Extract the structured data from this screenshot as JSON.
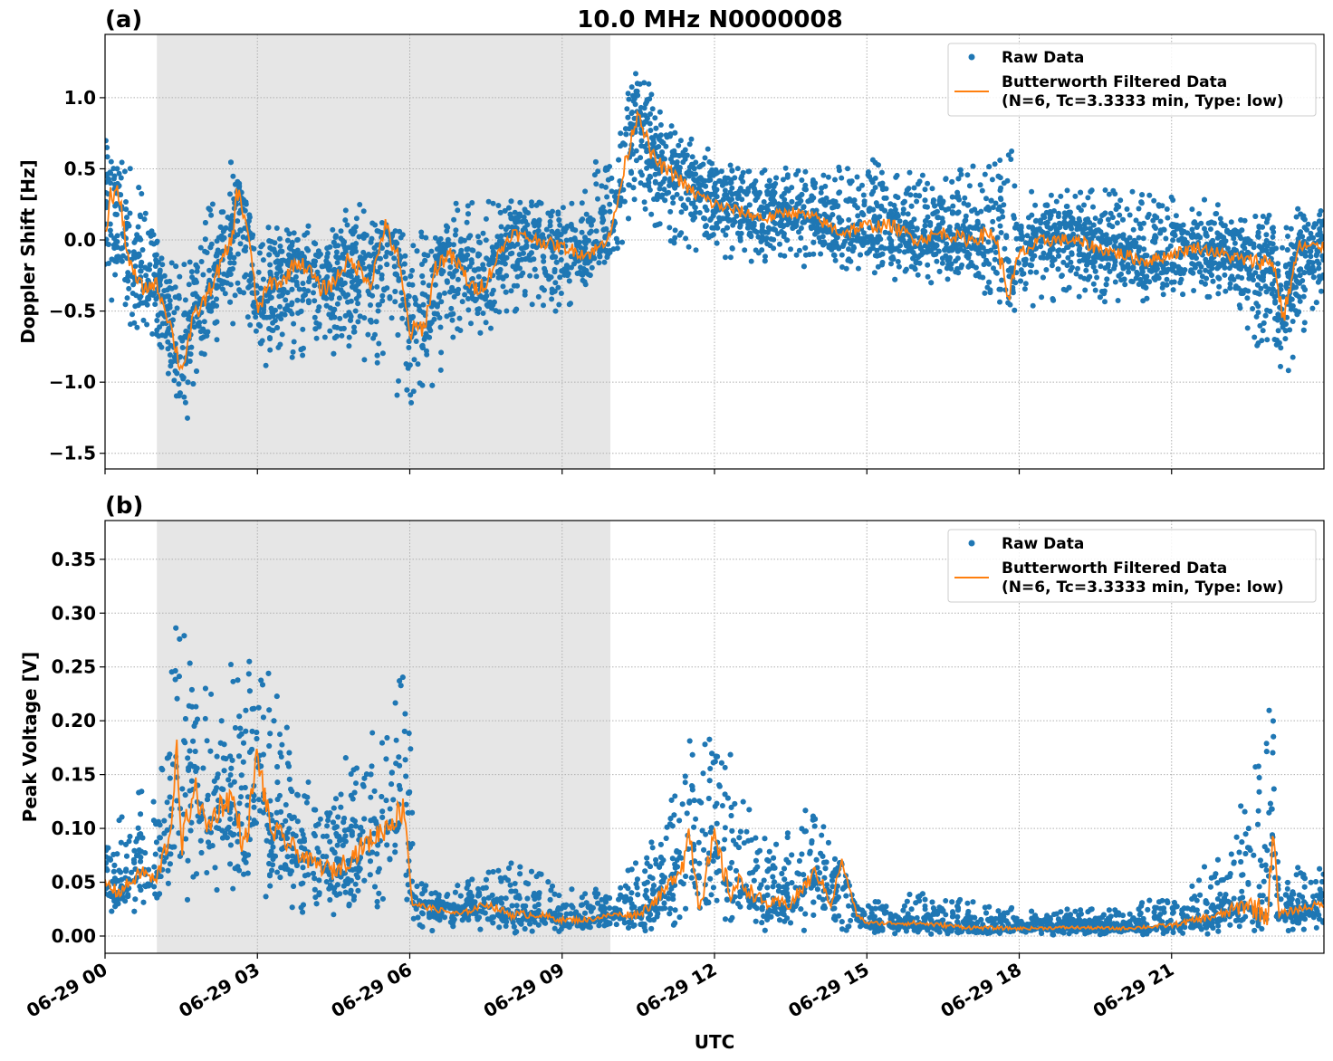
{
  "title": "10.0 MHz N0000008",
  "colors": {
    "raw": "#1f77b4",
    "filtered": "#ff7f0e",
    "shade": "#e6e6e6"
  },
  "chart_data": [
    {
      "type": "scatter+line",
      "panel_label": "(a)",
      "ylabel": "Doppler Shift [Hz]",
      "xlabel": "",
      "xlim_hours": [
        0,
        24
      ],
      "ylim": [
        -1.61,
        1.445
      ],
      "yticks": [
        -1.5,
        -1.0,
        -0.5,
        0.0,
        0.5,
        1.0
      ],
      "ytick_labels": [
        "−1.5",
        "−1.0",
        "−0.5",
        "0.0",
        "0.5",
        "1.0"
      ],
      "xticks_hours": [
        0,
        3,
        6,
        9,
        12,
        15,
        18,
        21
      ],
      "grid": true,
      "shaded_interval_hours": [
        1.02,
        9.95
      ],
      "legend": {
        "placement": "top-right",
        "entries": [
          "Raw Data",
          "Butterworth Filtered Data",
          "(N=6, Tc=3.3333 min, Type: low)"
        ]
      },
      "filtered": [
        [
          0,
          0.0
        ],
        [
          0.1,
          0.3
        ],
        [
          0.25,
          0.35
        ],
        [
          0.5,
          -0.2
        ],
        [
          0.75,
          -0.35
        ],
        [
          1.0,
          -0.3
        ],
        [
          1.25,
          -0.55
        ],
        [
          1.5,
          -0.92
        ],
        [
          1.75,
          -0.55
        ],
        [
          2.0,
          -0.4
        ],
        [
          2.25,
          -0.2
        ],
        [
          2.5,
          0.0
        ],
        [
          2.6,
          0.35
        ],
        [
          2.8,
          0.1
        ],
        [
          3.0,
          -0.5
        ],
        [
          3.25,
          -0.3
        ],
        [
          3.5,
          -0.3
        ],
        [
          3.75,
          -0.15
        ],
        [
          4.0,
          -0.2
        ],
        [
          4.25,
          -0.35
        ],
        [
          4.5,
          -0.3
        ],
        [
          4.75,
          -0.15
        ],
        [
          5.0,
          -0.2
        ],
        [
          5.25,
          -0.3
        ],
        [
          5.5,
          0.1
        ],
        [
          5.75,
          -0.1
        ],
        [
          6.0,
          -0.65
        ],
        [
          6.3,
          -0.6
        ],
        [
          6.5,
          -0.2
        ],
        [
          6.75,
          -0.1
        ],
        [
          7.0,
          -0.2
        ],
        [
          7.25,
          -0.35
        ],
        [
          7.5,
          -0.3
        ],
        [
          7.75,
          -0.1
        ],
        [
          8.0,
          0.05
        ],
        [
          8.25,
          0.02
        ],
        [
          8.5,
          0.0
        ],
        [
          9.0,
          -0.05
        ],
        [
          9.5,
          -0.1
        ],
        [
          9.75,
          -0.05
        ],
        [
          10.0,
          0.1
        ],
        [
          10.25,
          0.55
        ],
        [
          10.5,
          0.92
        ],
        [
          10.75,
          0.6
        ],
        [
          11.0,
          0.5
        ],
        [
          11.25,
          0.45
        ],
        [
          11.5,
          0.35
        ],
        [
          12.0,
          0.25
        ],
        [
          12.5,
          0.2
        ],
        [
          13.0,
          0.15
        ],
        [
          13.5,
          0.2
        ],
        [
          14.0,
          0.15
        ],
        [
          14.5,
          0.05
        ],
        [
          15.0,
          0.1
        ],
        [
          15.5,
          0.1
        ],
        [
          16.0,
          0.0
        ],
        [
          16.5,
          0.05
        ],
        [
          17.0,
          0.0
        ],
        [
          17.5,
          0.05
        ],
        [
          17.8,
          -0.4
        ],
        [
          18.0,
          -0.1
        ],
        [
          18.5,
          0.0
        ],
        [
          19.0,
          0.0
        ],
        [
          19.5,
          -0.05
        ],
        [
          20.0,
          -0.1
        ],
        [
          20.5,
          -0.15
        ],
        [
          21.0,
          -0.1
        ],
        [
          21.5,
          -0.05
        ],
        [
          22.0,
          -0.1
        ],
        [
          22.5,
          -0.15
        ],
        [
          23.0,
          -0.15
        ],
        [
          23.2,
          -0.55
        ],
        [
          23.5,
          -0.05
        ],
        [
          24.0,
          -0.05
        ]
      ],
      "raw_band": [
        [
          0,
          -0.5,
          0.9
        ],
        [
          1,
          -0.7,
          0.1
        ],
        [
          1.5,
          -1.4,
          -0.2
        ],
        [
          2,
          -0.8,
          0.2
        ],
        [
          2.5,
          -0.6,
          0.6
        ],
        [
          3,
          -0.9,
          0.1
        ],
        [
          4,
          -0.8,
          0.15
        ],
        [
          5,
          -0.8,
          0.3
        ],
        [
          6,
          -1.2,
          0.0
        ],
        [
          7,
          -0.8,
          0.3
        ],
        [
          8,
          -0.5,
          0.3
        ],
        [
          9,
          -0.5,
          0.25
        ],
        [
          10,
          -0.2,
          0.7
        ],
        [
          10.5,
          0.3,
          1.25
        ],
        [
          11,
          0.0,
          0.9
        ],
        [
          12,
          -0.15,
          0.6
        ],
        [
          13,
          -0.15,
          0.55
        ],
        [
          14,
          -0.2,
          0.5
        ],
        [
          15,
          -0.25,
          0.6
        ],
        [
          16,
          -0.3,
          0.45
        ],
        [
          17,
          -0.3,
          0.5
        ],
        [
          17.8,
          -0.55,
          0.7
        ],
        [
          18,
          -0.5,
          0.4
        ],
        [
          19,
          -0.4,
          0.35
        ],
        [
          20,
          -0.45,
          0.35
        ],
        [
          21,
          -0.4,
          0.3
        ],
        [
          22,
          -0.4,
          0.3
        ],
        [
          23.2,
          -1.0,
          0.2
        ],
        [
          24,
          -0.35,
          0.25
        ]
      ]
    },
    {
      "type": "scatter+line",
      "panel_label": "(b)",
      "ylabel": "Peak Voltage [V]",
      "xlabel": "UTC",
      "xlim_hours": [
        0,
        24
      ],
      "ylim": [
        -0.016,
        0.386
      ],
      "yticks": [
        0.0,
        0.05,
        0.1,
        0.15,
        0.2,
        0.25,
        0.3,
        0.35
      ],
      "ytick_labels": [
        "0.00",
        "0.05",
        "0.10",
        "0.15",
        "0.20",
        "0.25",
        "0.30",
        "0.35"
      ],
      "xticks_hours": [
        0,
        3,
        6,
        9,
        12,
        15,
        18,
        21
      ],
      "xtick_labels": [
        "06-29 00",
        "06-29 03",
        "06-29 06",
        "06-29 09",
        "06-29 12",
        "06-29 15",
        "06-29 18",
        "06-29 21"
      ],
      "grid": true,
      "shaded_interval_hours": [
        1.02,
        9.95
      ],
      "legend": {
        "placement": "top-right",
        "entries": [
          "Raw Data",
          "Butterworth Filtered Data",
          "(N=6, Tc=3.3333 min, Type: low)"
        ]
      },
      "filtered": [
        [
          0,
          0.05
        ],
        [
          0.25,
          0.04
        ],
        [
          0.5,
          0.05
        ],
        [
          0.75,
          0.06
        ],
        [
          1.0,
          0.05
        ],
        [
          1.3,
          0.1
        ],
        [
          1.4,
          0.18
        ],
        [
          1.5,
          0.08
        ],
        [
          1.75,
          0.14
        ],
        [
          2.0,
          0.1
        ],
        [
          2.25,
          0.12
        ],
        [
          2.5,
          0.13
        ],
        [
          2.75,
          0.08
        ],
        [
          3.0,
          0.17
        ],
        [
          3.25,
          0.1
        ],
        [
          3.5,
          0.09
        ],
        [
          4.0,
          0.07
        ],
        [
          4.5,
          0.06
        ],
        [
          5.0,
          0.08
        ],
        [
          5.5,
          0.1
        ],
        [
          5.9,
          0.12
        ],
        [
          6.05,
          0.03
        ],
        [
          6.5,
          0.025
        ],
        [
          7.0,
          0.02
        ],
        [
          7.5,
          0.03
        ],
        [
          8.0,
          0.02
        ],
        [
          8.5,
          0.02
        ],
        [
          9.0,
          0.015
        ],
        [
          9.5,
          0.015
        ],
        [
          10.0,
          0.02
        ],
        [
          10.5,
          0.02
        ],
        [
          11.0,
          0.04
        ],
        [
          11.4,
          0.07
        ],
        [
          11.5,
          0.1
        ],
        [
          11.7,
          0.03
        ],
        [
          12.0,
          0.09
        ],
        [
          12.3,
          0.04
        ],
        [
          12.5,
          0.05
        ],
        [
          13.0,
          0.03
        ],
        [
          13.5,
          0.03
        ],
        [
          14.0,
          0.06
        ],
        [
          14.3,
          0.03
        ],
        [
          14.5,
          0.07
        ],
        [
          14.8,
          0.02
        ],
        [
          15.0,
          0.012
        ],
        [
          16.0,
          0.012
        ],
        [
          16.5,
          0.01
        ],
        [
          17.0,
          0.008
        ],
        [
          18.0,
          0.007
        ],
        [
          19.0,
          0.008
        ],
        [
          20.0,
          0.007
        ],
        [
          21.0,
          0.01
        ],
        [
          21.5,
          0.015
        ],
        [
          22.0,
          0.02
        ],
        [
          22.5,
          0.03
        ],
        [
          22.9,
          0.02
        ],
        [
          23.0,
          0.11
        ],
        [
          23.1,
          0.02
        ],
        [
          23.5,
          0.025
        ],
        [
          24.0,
          0.03
        ]
      ],
      "raw_band": [
        [
          0,
          0.02,
          0.12
        ],
        [
          1,
          0.02,
          0.14
        ],
        [
          1.4,
          0.03,
          0.3
        ],
        [
          2,
          0.04,
          0.24
        ],
        [
          3,
          0.04,
          0.28
        ],
        [
          4,
          0.02,
          0.15
        ],
        [
          5,
          0.02,
          0.19
        ],
        [
          6,
          0.02,
          0.25
        ],
        [
          6.1,
          0.005,
          0.05
        ],
        [
          7,
          0.005,
          0.05
        ],
        [
          8,
          0.003,
          0.07
        ],
        [
          9,
          0.003,
          0.05
        ],
        [
          10,
          0.005,
          0.04
        ],
        [
          11,
          0.005,
          0.11
        ],
        [
          11.5,
          0.01,
          0.2
        ],
        [
          12,
          0.01,
          0.22
        ],
        [
          13,
          0.005,
          0.1
        ],
        [
          14,
          0.005,
          0.13
        ],
        [
          14.8,
          0.003,
          0.03
        ],
        [
          16,
          0.002,
          0.04
        ],
        [
          18,
          0.001,
          0.025
        ],
        [
          20,
          0.001,
          0.025
        ],
        [
          21,
          0.002,
          0.04
        ],
        [
          22,
          0.002,
          0.08
        ],
        [
          23,
          0.005,
          0.25
        ],
        [
          23.2,
          0.005,
          0.06
        ],
        [
          24,
          0.005,
          0.07
        ]
      ]
    }
  ]
}
